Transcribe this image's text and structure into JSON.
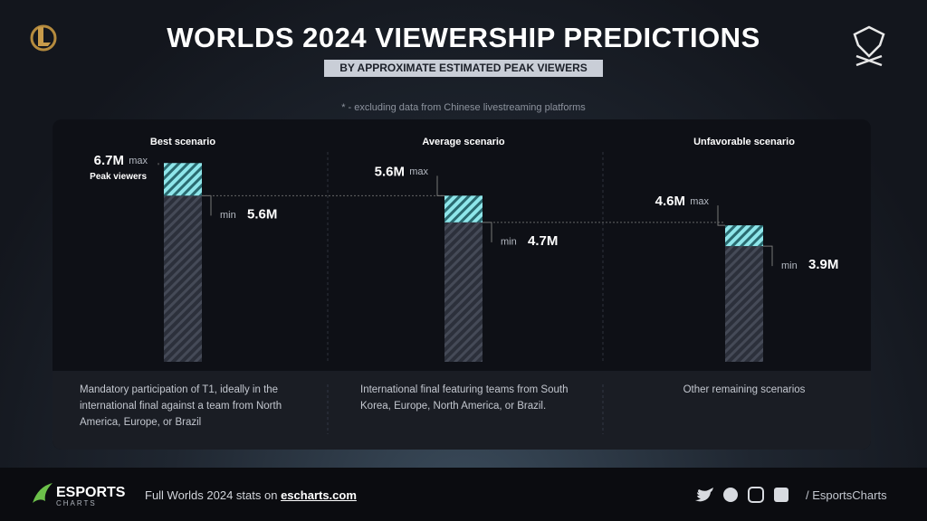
{
  "chart_data": {
    "type": "range-bar",
    "title": "WORLDS 2024 VIEWERSHIP PREDICTIONS",
    "subtitle": "BY APPROXIMATE ESTIMATED PEAK VIEWERS",
    "note": "* - excluding data from Chinese livestreaming platforms",
    "categories": [
      "Best scenario",
      "Average scenario",
      "Unfavorable scenario"
    ],
    "value_note": "Peak viewers",
    "series": [
      {
        "name": "max",
        "color": "#8ee6ea",
        "values": [
          6.7,
          5.6,
          4.6
        ],
        "value_labels": [
          "6.7M",
          "5.6M",
          "4.6M"
        ]
      },
      {
        "name": "min",
        "color": "#2c303b",
        "values": [
          5.6,
          4.7,
          3.9
        ],
        "value_labels": [
          "5.6M",
          "4.7M",
          "3.9M"
        ]
      }
    ],
    "descriptions": [
      "Mandatory participation of T1, ideally in the international final against a team from North America, Europe, or Brazil",
      "International final featuring teams from South Korea, Europe, North America, or Brazil.",
      "Other remaining scenarios"
    ]
  },
  "footer": {
    "brand": "ESPORTS",
    "brand_sub": "CHARTS",
    "text": "Full Worlds 2024 stats on",
    "link": "escharts.com",
    "handle": "/ EsportsCharts"
  }
}
